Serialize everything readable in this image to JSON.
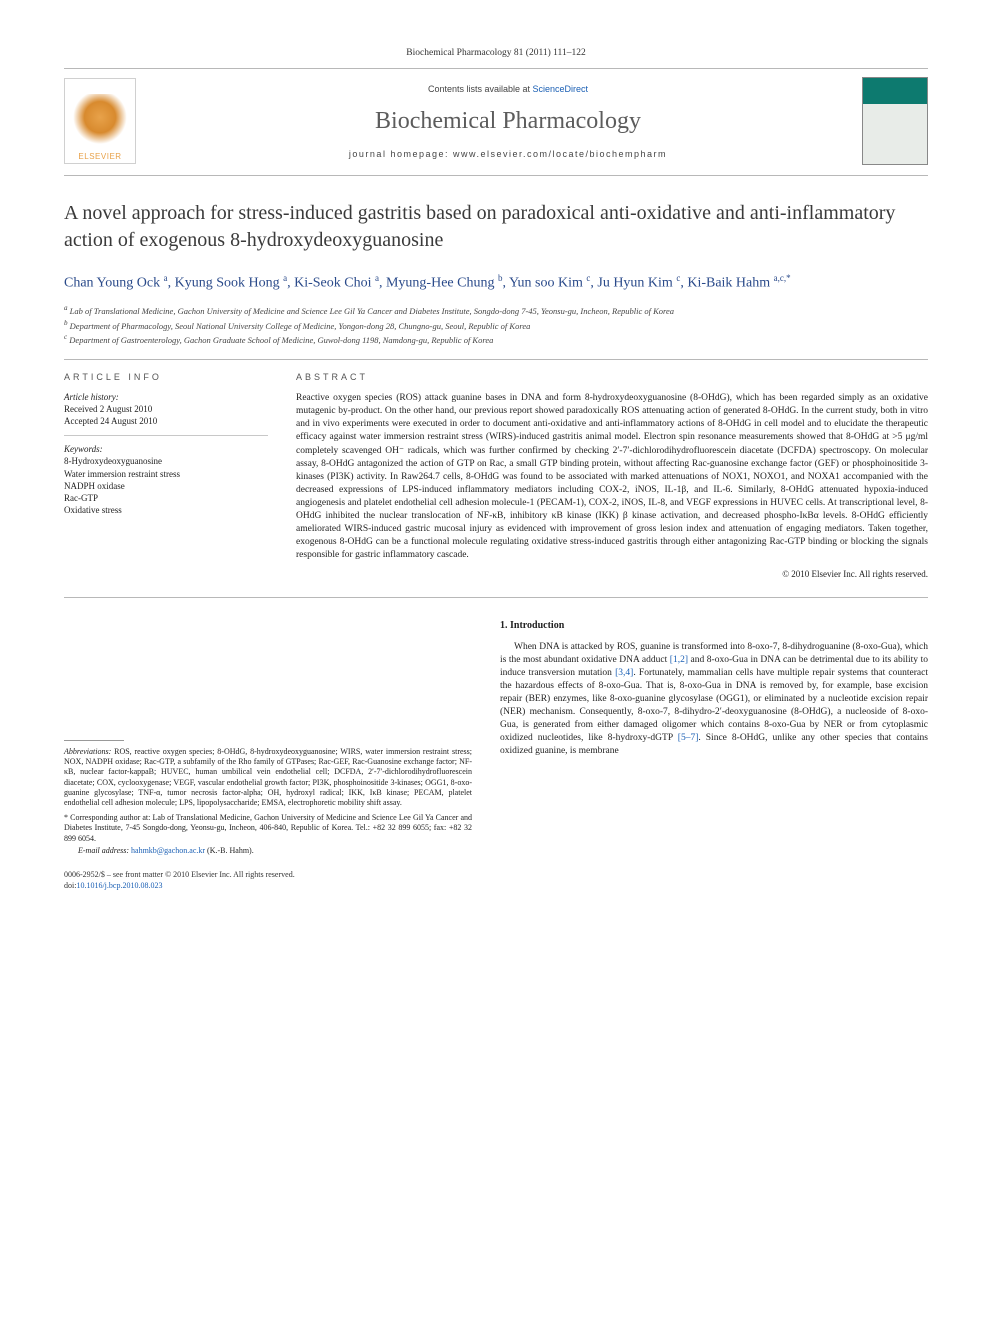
{
  "header": {
    "journal_ref": "Biochemical Pharmacology 81 (2011) 111–122",
    "contents_prefix": "Contents lists available at ",
    "contents_link": "ScienceDirect",
    "journal_name": "Biochemical Pharmacology",
    "homepage_prefix": "journal homepage: ",
    "homepage_url": "www.elsevier.com/locate/biochempharm",
    "elsevier_label": "ELSEVIER"
  },
  "article": {
    "title": "A novel approach for stress-induced gastritis based on paradoxical anti-oxidative and anti-inflammatory action of exogenous 8-hydroxydeoxyguanosine",
    "authors_html": "Chan Young Ock <sup>a</sup>, Kyung Sook Hong <sup>a</sup>, Ki-Seok Choi <sup>a</sup>, Myung-Hee Chung <sup>b</sup>, Yun soo Kim <sup>c</sup>, Ju Hyun Kim <sup>c</sup>, Ki-Baik Hahm <sup>a,c,*</sup>",
    "affiliations": [
      "a Lab of Translational Medicine, Gachon University of Medicine and Science Lee Gil Ya Cancer and Diabetes Institute, Songdo-dong 7-45, Yeonsu-gu, Incheon, Republic of Korea",
      "b Department of Pharmacology, Seoul National University College of Medicine, Yongon-dong 28, Chungno-gu, Seoul, Republic of Korea",
      "c Department of Gastroenterology, Gachon Graduate School of Medicine, Guwol-dong 1198, Namdong-gu, Republic of Korea"
    ]
  },
  "article_info": {
    "head": "ARTICLE INFO",
    "history_label": "Article history:",
    "received": "Received 2 August 2010",
    "accepted": "Accepted 24 August 2010",
    "keywords_label": "Keywords:",
    "keywords": [
      "8-Hydroxydeoxyguanosine",
      "Water immersion restraint stress",
      "NADPH oxidase",
      "Rac-GTP",
      "Oxidative stress"
    ]
  },
  "abstract": {
    "head": "ABSTRACT",
    "text": "Reactive oxygen species (ROS) attack guanine bases in DNA and form 8-hydroxydeoxyguanosine (8-OHdG), which has been regarded simply as an oxidative mutagenic by-product. On the other hand, our previous report showed paradoxically ROS attenuating action of generated 8-OHdG. In the current study, both in vitro and in vivo experiments were executed in order to document anti-oxidative and anti-inflammatory actions of 8-OHdG in cell model and to elucidate the therapeutic efficacy against water immersion restraint stress (WIRS)-induced gastritis animal model. Electron spin resonance measurements showed that 8-OHdG at >5 μg/ml completely scavenged OH⁻ radicals, which was further confirmed by checking 2′-7′-dichlorodihydrofluorescein diacetate (DCFDA) spectroscopy. On molecular assay, 8-OHdG antagonized the action of GTP on Rac, a small GTP binding protein, without affecting Rac-guanosine exchange factor (GEF) or phosphoinositide 3-kinases (PI3K) activity. In Raw264.7 cells, 8-OHdG was found to be associated with marked attenuations of NOX1, NOXO1, and NOXA1 accompanied with the decreased expressions of LPS-induced inflammatory mediators including COX-2, iNOS, IL-1β, and IL-6. Similarly, 8-OHdG attenuated hypoxia-induced angiogenesis and platelet endothelial cell adhesion molecule-1 (PECAM-1), COX-2, iNOS, IL-8, and VEGF expressions in HUVEC cells. At transcriptional level, 8-OHdG inhibited the nuclear translocation of NF-κB, inhibitory κB kinase (IKK) β kinase activation, and decreased phospho-IκBα levels. 8-OHdG efficiently ameliorated WIRS-induced gastric mucosal injury as evidenced with improvement of gross lesion index and attenuation of engaging mediators. Taken together, exogenous 8-OHdG can be a functional molecule regulating oxidative stress-induced gastritis through either antagonizing Rac-GTP binding or blocking the signals responsible for gastric inflammatory cascade.",
    "copyright": "© 2010 Elsevier Inc. All rights reserved."
  },
  "footnotes": {
    "abbrev_label": "Abbreviations:",
    "abbrev_text": " ROS, reactive oxygen species; 8-OHdG, 8-hydroxydeoxyguanosine; WIRS, water immersion restraint stress; NOX, NADPH oxidase; Rac-GTP, a subfamily of the Rho family of GTPases; Rac-GEF, Rac-Guanosine exchange factor; NF-κB, nuclear factor-kappaB; HUVEC, human umbilical vein endothelial cell; DCFDA, 2′-7′-dichlorodihydrofluorescein diacetate; COX, cyclooxygenase; VEGF, vascular endothelial growth factor; PI3K, phosphoinositide 3-kinases; OGG1, 8-oxo-guanine glycosylase; TNF-α, tumor necrosis factor-alpha; OH, hydroxyl radical; IKK, IκB kinase; PECAM, platelet endothelial cell adhesion molecule; LPS, lipopolysaccharide; EMSA, electrophoretic mobility shift assay.",
    "corresp_label": "* Corresponding author at:",
    "corresp_text": " Lab of Translational Medicine, Gachon University of Medicine and Science Lee Gil Ya Cancer and Diabetes Institute, 7-45 Songdo-dong, Yeonsu-gu, Incheon, 406-840, Republic of Korea. Tel.: +82 32 899 6055; fax: +82 32 899 6054.",
    "email_label": "E-mail address: ",
    "email": "hahmkb@gachon.ac.kr",
    "email_suffix": " (K.-B. Hahm)."
  },
  "intro": {
    "head": "1. Introduction",
    "text_html": "When DNA is attacked by ROS, guanine is transformed into 8-oxo-7, 8-dihydroguanine (8-oxo-Gua), which is the most abundant oxidative DNA adduct <a href='#'>[1,2]</a> and 8-oxo-Gua in DNA can be detrimental due to its ability to induce transversion mutation <a href='#'>[3,4]</a>. Fortunately, mammalian cells have multiple repair systems that counteract the hazardous effects of 8-oxo-Gua. That is, 8-oxo-Gua in DNA is removed by, for example, base excision repair (BER) enzymes, like 8-oxo-guanine glycosylase (OGG1), or eliminated by a nucleotide excision repair (NER) mechanism. Consequently, 8-oxo-7, 8-dihydro-2′-deoxyguanosine (8-OHdG), a nucleoside of 8-oxo-Gua, is generated from either damaged oligomer which contains 8-oxo-Gua by NER or from cytoplasmic oxidized nucleotides, like 8-hydroxy-dGTP <a href='#'>[5–7]</a>. Since 8-OHdG, unlike any other species that contains oxidized guanine, is membrane"
  },
  "bottom": {
    "line1": "0006-2952/$ – see front matter © 2010 Elsevier Inc. All rights reserved.",
    "doi_label": "doi:",
    "doi": "10.1016/j.bcp.2010.08.023"
  },
  "style": {
    "link_color": "#1a5fb4",
    "accent_color": "#2a4a8a",
    "rule_color": "#b8b8b8",
    "text_color": "#222222",
    "page_bg": "#ffffff",
    "body_fontsize_pt": 9.5,
    "title_fontsize_pt": 20,
    "author_fontsize_pt": 14
  }
}
